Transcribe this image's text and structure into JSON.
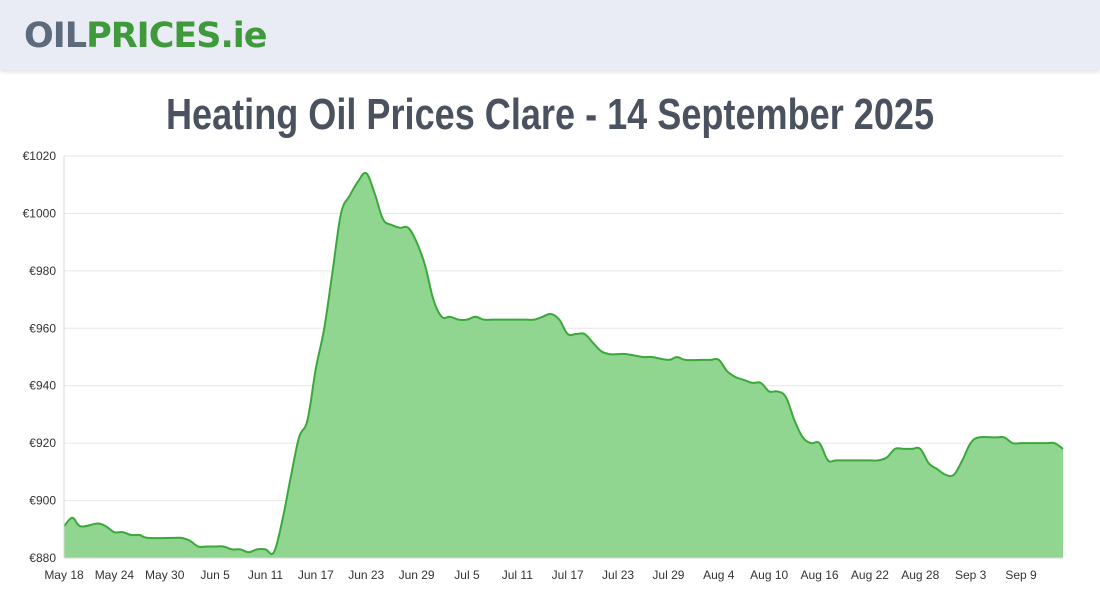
{
  "header": {
    "logo_part1": "OIL",
    "logo_part2": "PRICES",
    "logo_part3": ".ie"
  },
  "page_title": "Heating Oil Prices Clare - 14 September 2025",
  "colors": {
    "line": "#3aa83a",
    "fill": "#90d690",
    "grid": "#e6e6e6",
    "logo_grey": "#5d6a7c",
    "logo_green": "#3f9a3c"
  },
  "chart_data": {
    "type": "area",
    "title": "",
    "xlabel": "",
    "ylabel": "",
    "ylim": [
      880,
      1020
    ],
    "yticks": [
      880,
      900,
      920,
      940,
      960,
      980,
      1000,
      1020
    ],
    "ytick_labels": [
      "€880",
      "€900",
      "€920",
      "€940",
      "€960",
      "€980",
      "€1000",
      "€1020"
    ],
    "xlim": [
      "2025-05-18",
      "2025-09-14"
    ],
    "xtick_labels": [
      {
        "date": "2025-05-18",
        "label": "May 18"
      },
      {
        "date": "2025-05-24",
        "label": "May 24"
      },
      {
        "date": "2025-05-30",
        "label": "May 30"
      },
      {
        "date": "2025-06-05",
        "label": "Jun 5"
      },
      {
        "date": "2025-06-11",
        "label": "Jun 11"
      },
      {
        "date": "2025-06-17",
        "label": "Jun 17"
      },
      {
        "date": "2025-06-23",
        "label": "Jun 23"
      },
      {
        "date": "2025-06-29",
        "label": "Jun 29"
      },
      {
        "date": "2025-07-05",
        "label": "Jul 5"
      },
      {
        "date": "2025-07-11",
        "label": "Jul 11"
      },
      {
        "date": "2025-07-17",
        "label": "Jul 17"
      },
      {
        "date": "2025-07-23",
        "label": "Jul 23"
      },
      {
        "date": "2025-07-29",
        "label": "Jul 29"
      },
      {
        "date": "2025-08-04",
        "label": "Aug 4"
      },
      {
        "date": "2025-08-10",
        "label": "Aug 10"
      },
      {
        "date": "2025-08-16",
        "label": "Aug 16"
      },
      {
        "date": "2025-08-22",
        "label": "Aug 22"
      },
      {
        "date": "2025-08-28",
        "label": "Aug 28"
      },
      {
        "date": "2025-09-03",
        "label": "Sep 3"
      },
      {
        "date": "2025-09-09",
        "label": "Sep 9"
      }
    ],
    "grid": true,
    "legend": false,
    "series": [
      {
        "x": [
          "2025-05-18",
          "2025-05-19",
          "2025-05-20",
          "2025-05-22",
          "2025-05-23",
          "2025-05-24",
          "2025-05-25",
          "2025-05-26",
          "2025-05-27",
          "2025-05-28",
          "2025-05-31",
          "2025-06-01",
          "2025-06-02",
          "2025-06-03",
          "2025-06-04",
          "2025-06-05",
          "2025-06-06",
          "2025-06-07",
          "2025-06-08",
          "2025-06-09",
          "2025-06-10",
          "2025-06-11",
          "2025-06-12",
          "2025-06-13",
          "2025-06-14",
          "2025-06-15",
          "2025-06-16",
          "2025-06-17",
          "2025-06-18",
          "2025-06-19",
          "2025-06-20",
          "2025-06-21",
          "2025-06-22",
          "2025-06-23",
          "2025-06-24",
          "2025-06-25",
          "2025-06-26",
          "2025-06-27",
          "2025-06-28",
          "2025-06-29",
          "2025-06-30",
          "2025-07-01",
          "2025-07-02",
          "2025-07-03",
          "2025-07-04",
          "2025-07-05",
          "2025-07-06",
          "2025-07-07",
          "2025-07-08",
          "2025-07-09",
          "2025-07-10",
          "2025-07-11",
          "2025-07-12",
          "2025-07-13",
          "2025-07-14",
          "2025-07-15",
          "2025-07-16",
          "2025-07-17",
          "2025-07-18",
          "2025-07-19",
          "2025-07-20",
          "2025-07-21",
          "2025-07-22",
          "2025-07-23",
          "2025-07-24",
          "2025-07-26",
          "2025-07-27",
          "2025-07-29",
          "2025-07-30",
          "2025-07-31",
          "2025-08-02",
          "2025-08-03",
          "2025-08-04",
          "2025-08-05",
          "2025-08-06",
          "2025-08-07",
          "2025-08-08",
          "2025-08-09",
          "2025-08-10",
          "2025-08-11",
          "2025-08-12",
          "2025-08-13",
          "2025-08-14",
          "2025-08-15",
          "2025-08-16",
          "2025-08-17",
          "2025-08-18",
          "2025-08-20",
          "2025-08-21",
          "2025-08-22",
          "2025-08-23",
          "2025-08-24",
          "2025-08-25",
          "2025-08-26",
          "2025-08-27",
          "2025-08-28",
          "2025-08-29",
          "2025-08-30",
          "2025-08-31",
          "2025-09-01",
          "2025-09-02",
          "2025-09-03",
          "2025-09-04",
          "2025-09-06",
          "2025-09-07",
          "2025-09-08",
          "2025-09-09",
          "2025-09-10",
          "2025-09-12",
          "2025-09-13",
          "2025-09-14"
        ],
        "values": [
          891,
          894,
          891,
          892,
          891,
          889,
          889,
          888,
          888,
          887,
          887,
          887,
          886,
          884,
          884,
          884,
          884,
          883,
          883,
          882,
          883,
          883,
          882,
          893,
          908,
          922,
          928,
          946,
          960,
          980,
          1000,
          1006,
          1011,
          1014,
          1007,
          998,
          996,
          995,
          995,
          990,
          982,
          970,
          964,
          964,
          963,
          963,
          964,
          963,
          963,
          963,
          963,
          963,
          963,
          963,
          964,
          965,
          963,
          958,
          958,
          958,
          955,
          952,
          951,
          951,
          951,
          950,
          950,
          949,
          950,
          949,
          949,
          949,
          949,
          945,
          943,
          942,
          941,
          941,
          938,
          938,
          936,
          928,
          922,
          920,
          920,
          914,
          914,
          914,
          914,
          914,
          914,
          915,
          918,
          918,
          918,
          918,
          913,
          911,
          909,
          909,
          914,
          920,
          922,
          922,
          922,
          920,
          920,
          920,
          920,
          920,
          918
        ]
      }
    ]
  }
}
